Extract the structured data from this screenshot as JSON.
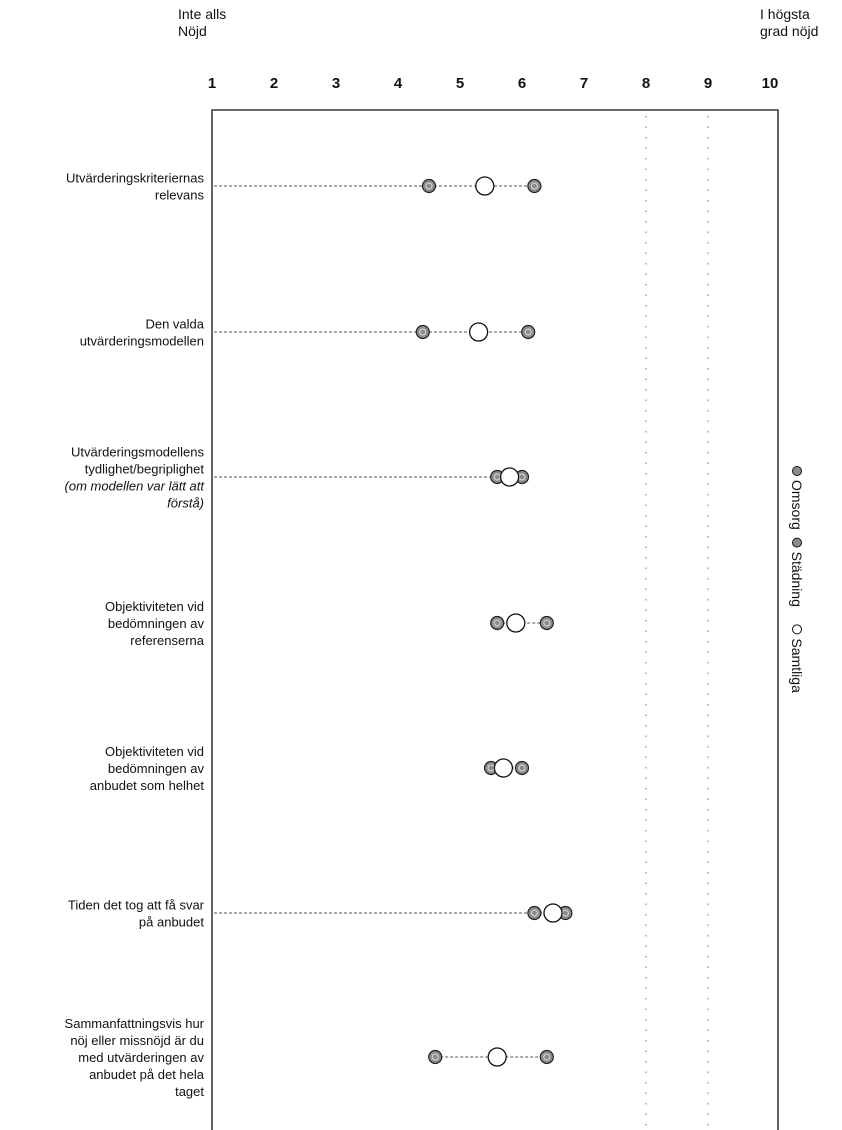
{
  "scale": {
    "left_label": [
      "Inte alls",
      "Nöjd"
    ],
    "right_label": [
      "I högsta",
      "grad nöjd"
    ]
  },
  "chart_data": {
    "type": "scatter",
    "title": "",
    "xlabel": "",
    "ylabel": "",
    "xlim": [
      1,
      10
    ],
    "x_ticks": [
      "1",
      "2",
      "3",
      "4",
      "5",
      "6",
      "7",
      "8",
      "9",
      "10"
    ],
    "grid": false,
    "legend": {
      "placement": "right, vertical",
      "entries": [
        "Omsorg",
        "Städning",
        "Samtliga"
      ]
    },
    "categories": [
      {
        "lines": [
          "Utvärderingskriteriernas",
          "relevans"
        ]
      },
      {
        "lines": [
          "Den valda",
          "utvärderingsmodellen"
        ]
      },
      {
        "lines": [
          "Utvärderingsmodellens",
          "tydlighet/begriplighet",
          "(om modellen var lätt att",
          "förstå)"
        ]
      },
      {
        "lines": [
          "Objektiviteten vid",
          "bedömningen av",
          "referenserna"
        ]
      },
      {
        "lines": [
          "Objektiviteten vid",
          "bedömningen av",
          "anbudet som helhet"
        ]
      },
      {
        "lines": [
          "Tiden det tog att få svar",
          "på anbudet"
        ]
      },
      {
        "lines": [
          "Sammanfattningsvis hur",
          "nöj eller missnöjd är du",
          "med utvärderingen av",
          "anbudet på det hela",
          "taget"
        ]
      }
    ],
    "series": [
      {
        "name": "Omsorg",
        "values": [
          4.5,
          4.4,
          5.6,
          5.6,
          5.5,
          6.2,
          4.6
        ]
      },
      {
        "name": "Städning",
        "values": [
          6.2,
          6.1,
          6.0,
          6.4,
          6.0,
          6.7,
          6.4
        ]
      },
      {
        "name": "Samtliga",
        "values": [
          5.4,
          5.3,
          5.8,
          5.9,
          5.7,
          6.5,
          5.6
        ]
      }
    ],
    "colors": {
      "filled": "#8c8c8c",
      "open": "#ffffff",
      "stroke": "#111111"
    }
  }
}
